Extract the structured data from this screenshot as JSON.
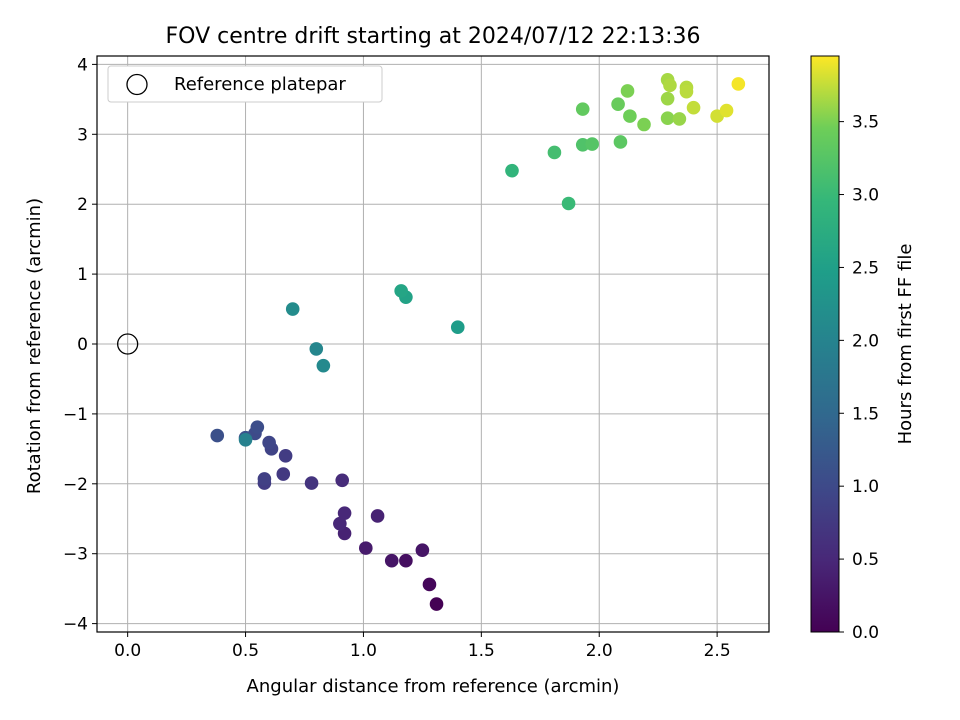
{
  "chart_data": {
    "type": "scatter",
    "title": "FOV centre drift starting at 2024/07/12 22:13:36",
    "xlabel": "Angular distance from reference (arcmin)",
    "ylabel": "Rotation from reference (arcmin)",
    "xlim": [
      -0.13,
      2.72
    ],
    "ylim": [
      -4.12,
      4.12
    ],
    "xticks": [
      "0.0",
      "0.5",
      "1.0",
      "1.5",
      "2.0",
      "2.5"
    ],
    "yticks": [
      "−4",
      "−3",
      "−2",
      "−1",
      "0",
      "1",
      "2",
      "3",
      "4"
    ],
    "grid": true,
    "legend": {
      "position": "top-left",
      "entries": [
        "Reference platepar"
      ]
    },
    "colorbar": {
      "label": "Hours from first FF file",
      "range": [
        0,
        3.95
      ],
      "ticks": [
        "0.0",
        "0.5",
        "1.0",
        "1.5",
        "2.0",
        "2.5",
        "3.0",
        "3.5"
      ],
      "colormap": "viridis"
    },
    "reference_point": {
      "x": 0,
      "y": 0
    },
    "points": [
      {
        "x": 1.31,
        "y": -3.72,
        "c": 0.0
      },
      {
        "x": 1.28,
        "y": -3.44,
        "c": 0.08
      },
      {
        "x": 1.18,
        "y": -3.1,
        "c": 0.17
      },
      {
        "x": 1.12,
        "y": -3.1,
        "c": 0.25
      },
      {
        "x": 1.25,
        "y": -2.95,
        "c": 0.25
      },
      {
        "x": 1.01,
        "y": -2.92,
        "c": 0.33
      },
      {
        "x": 1.06,
        "y": -2.46,
        "c": 0.42
      },
      {
        "x": 0.92,
        "y": -2.71,
        "c": 0.42
      },
      {
        "x": 0.9,
        "y": -2.57,
        "c": 0.5
      },
      {
        "x": 0.92,
        "y": -2.42,
        "c": 0.5
      },
      {
        "x": 0.91,
        "y": -1.95,
        "c": 0.55
      },
      {
        "x": 0.78,
        "y": -1.99,
        "c": 0.67
      },
      {
        "x": 0.66,
        "y": -1.86,
        "c": 0.75
      },
      {
        "x": 0.67,
        "y": -1.6,
        "c": 0.8
      },
      {
        "x": 0.58,
        "y": -1.99,
        "c": 0.8
      },
      {
        "x": 0.58,
        "y": -1.93,
        "c": 0.85
      },
      {
        "x": 0.61,
        "y": -1.5,
        "c": 0.9
      },
      {
        "x": 0.6,
        "y": -1.41,
        "c": 0.95
      },
      {
        "x": 0.54,
        "y": -1.28,
        "c": 1.0
      },
      {
        "x": 0.55,
        "y": -1.19,
        "c": 1.05
      },
      {
        "x": 0.38,
        "y": -1.31,
        "c": 1.1
      },
      {
        "x": 0.5,
        "y": -1.34,
        "c": 1.15
      },
      {
        "x": 0.5,
        "y": -1.37,
        "c": 1.95
      },
      {
        "x": 0.8,
        "y": -0.07,
        "c": 2.05
      },
      {
        "x": 0.83,
        "y": -0.31,
        "c": 2.1
      },
      {
        "x": 0.7,
        "y": 0.5,
        "c": 2.15
      },
      {
        "x": 1.4,
        "y": 0.24,
        "c": 2.45
      },
      {
        "x": 1.18,
        "y": 0.67,
        "c": 2.55
      },
      {
        "x": 1.16,
        "y": 0.76,
        "c": 2.6
      },
      {
        "x": 1.63,
        "y": 2.48,
        "c": 2.9
      },
      {
        "x": 1.87,
        "y": 2.01,
        "c": 3.0
      },
      {
        "x": 1.81,
        "y": 2.74,
        "c": 3.1
      },
      {
        "x": 1.93,
        "y": 2.85,
        "c": 3.2
      },
      {
        "x": 1.97,
        "y": 2.86,
        "c": 3.25
      },
      {
        "x": 2.09,
        "y": 2.89,
        "c": 3.3
      },
      {
        "x": 1.93,
        "y": 3.36,
        "c": 3.35
      },
      {
        "x": 2.08,
        "y": 3.43,
        "c": 3.4
      },
      {
        "x": 2.13,
        "y": 3.26,
        "c": 3.45
      },
      {
        "x": 2.19,
        "y": 3.14,
        "c": 3.5
      },
      {
        "x": 2.12,
        "y": 3.62,
        "c": 3.5
      },
      {
        "x": 2.29,
        "y": 3.23,
        "c": 3.55
      },
      {
        "x": 2.34,
        "y": 3.22,
        "c": 3.6
      },
      {
        "x": 2.29,
        "y": 3.51,
        "c": 3.62
      },
      {
        "x": 2.29,
        "y": 3.78,
        "c": 3.65
      },
      {
        "x": 2.3,
        "y": 3.7,
        "c": 3.68
      },
      {
        "x": 2.37,
        "y": 3.67,
        "c": 3.7
      },
      {
        "x": 2.37,
        "y": 3.61,
        "c": 3.72
      },
      {
        "x": 2.4,
        "y": 3.38,
        "c": 3.75
      },
      {
        "x": 2.5,
        "y": 3.26,
        "c": 3.8
      },
      {
        "x": 2.54,
        "y": 3.34,
        "c": 3.85
      },
      {
        "x": 2.59,
        "y": 3.72,
        "c": 3.92
      }
    ]
  }
}
